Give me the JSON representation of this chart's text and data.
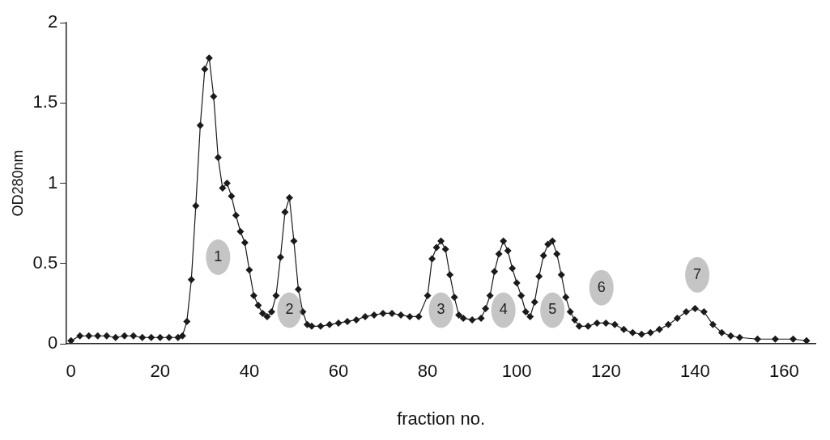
{
  "chart_data": {
    "type": "line",
    "xlabel": "fraction no.",
    "ylabel": "OD280nm",
    "xlim": [
      -1,
      167
    ],
    "xticks": [
      0,
      20,
      40,
      60,
      80,
      100,
      120,
      140,
      160
    ],
    "ylim": [
      0,
      2
    ],
    "yticks": [
      0,
      0.5,
      1,
      1.5,
      2
    ],
    "grid": false,
    "legend": false,
    "marker": "diamond",
    "line_style": "solid",
    "series": [
      {
        "color": "#1a1a1a",
        "x": [
          0,
          2,
          4,
          6,
          8,
          10,
          12,
          14,
          16,
          18,
          20,
          22,
          24,
          25,
          26,
          27,
          28,
          29,
          30,
          31,
          32,
          33,
          34,
          35,
          36,
          37,
          38,
          39,
          40,
          41,
          42,
          43,
          44,
          45,
          46,
          47,
          48,
          49,
          50,
          51,
          52,
          53,
          54,
          56,
          58,
          60,
          62,
          64,
          66,
          68,
          70,
          72,
          74,
          76,
          78,
          80,
          81,
          82,
          83,
          84,
          85,
          86,
          87,
          88,
          90,
          92,
          93,
          94,
          95,
          96,
          97,
          98,
          99,
          100,
          101,
          102,
          103,
          104,
          105,
          106,
          107,
          108,
          109,
          110,
          111,
          112,
          113,
          114,
          116,
          118,
          120,
          122,
          124,
          126,
          128,
          130,
          132,
          134,
          136,
          138,
          140,
          142,
          144,
          146,
          148,
          150,
          154,
          158,
          162,
          165
        ],
        "values": [
          0.02,
          0.05,
          0.05,
          0.05,
          0.05,
          0.04,
          0.05,
          0.05,
          0.04,
          0.04,
          0.04,
          0.04,
          0.04,
          0.05,
          0.14,
          0.4,
          0.86,
          1.36,
          1.71,
          1.78,
          1.54,
          1.16,
          0.97,
          1.0,
          0.92,
          0.8,
          0.7,
          0.63,
          0.46,
          0.3,
          0.24,
          0.19,
          0.17,
          0.2,
          0.3,
          0.54,
          0.82,
          0.91,
          0.64,
          0.34,
          0.2,
          0.12,
          0.11,
          0.11,
          0.12,
          0.13,
          0.14,
          0.15,
          0.17,
          0.18,
          0.19,
          0.19,
          0.18,
          0.17,
          0.17,
          0.3,
          0.53,
          0.6,
          0.64,
          0.59,
          0.43,
          0.29,
          0.18,
          0.16,
          0.15,
          0.16,
          0.22,
          0.3,
          0.45,
          0.56,
          0.64,
          0.58,
          0.47,
          0.38,
          0.3,
          0.2,
          0.17,
          0.26,
          0.42,
          0.55,
          0.62,
          0.64,
          0.56,
          0.43,
          0.29,
          0.2,
          0.15,
          0.11,
          0.11,
          0.13,
          0.13,
          0.12,
          0.09,
          0.07,
          0.06,
          0.07,
          0.09,
          0.12,
          0.16,
          0.2,
          0.22,
          0.2,
          0.12,
          0.07,
          0.05,
          0.04,
          0.03,
          0.03,
          0.03,
          0.02
        ]
      }
    ],
    "annotations": [
      {
        "text": "1",
        "x": 33,
        "y": 0.54
      },
      {
        "text": "2",
        "x": 49,
        "y": 0.21
      },
      {
        "text": "3",
        "x": 83,
        "y": 0.21
      },
      {
        "text": "4",
        "x": 97,
        "y": 0.21
      },
      {
        "text": "5",
        "x": 108,
        "y": 0.21
      },
      {
        "text": "6",
        "x": 119,
        "y": 0.35
      },
      {
        "text": "7",
        "x": 140.5,
        "y": 0.43
      }
    ]
  }
}
